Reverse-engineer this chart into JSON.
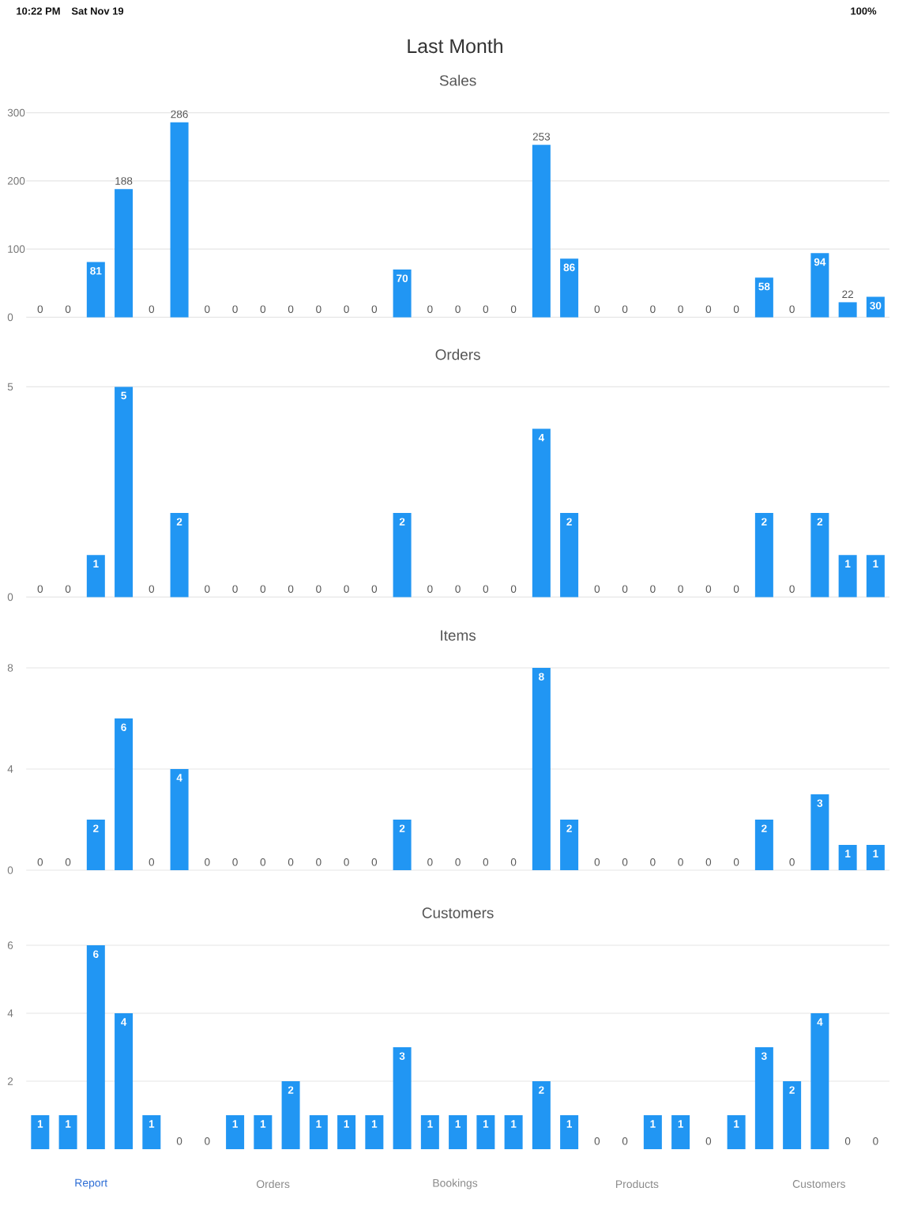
{
  "chart_data": [
    {
      "type": "other",
      "title": "Last Month",
      "annotations": [
        "10:22 PM",
        "Sat Nov 19",
        "100%"
      ]
    },
    {
      "type": "bar",
      "title": "Sales",
      "categories": [
        null,
        null,
        null,
        null,
        null,
        null,
        null,
        null,
        null,
        null,
        null,
        null,
        null,
        null,
        null,
        null,
        null,
        null,
        null,
        null,
        null,
        null,
        null,
        null,
        null,
        null,
        null,
        null,
        null,
        null,
        null
      ],
      "values": [
        0,
        0,
        81,
        188,
        0,
        286,
        0,
        0,
        0,
        0,
        0,
        0,
        0,
        70,
        0,
        0,
        0,
        0,
        253,
        86,
        0,
        0,
        0,
        0,
        0,
        0,
        58,
        0,
        94,
        22,
        30
      ],
      "color": "#2196f3",
      "ylim": [
        0,
        300
      ],
      "yticks": [
        0,
        100,
        200,
        300
      ],
      "grid": "y",
      "tick_labels": "y",
      "data_labels": true
    },
    {
      "type": "bar",
      "title": "Orders",
      "categories": [
        null,
        null,
        null,
        null,
        null,
        null,
        null,
        null,
        null,
        null,
        null,
        null,
        null,
        null,
        null,
        null,
        null,
        null,
        null,
        null,
        null,
        null,
        null,
        null,
        null,
        null,
        null,
        null,
        null,
        null,
        null
      ],
      "values": [
        0,
        0,
        1,
        5,
        0,
        2,
        0,
        0,
        0,
        0,
        0,
        0,
        0,
        2,
        0,
        0,
        0,
        0,
        4,
        2,
        0,
        0,
        0,
        0,
        0,
        0,
        2,
        0,
        2,
        1,
        1
      ],
      "color": "#2196f3",
      "ylim": [
        0,
        5
      ],
      "yticks": [
        0,
        5
      ],
      "grid": "y",
      "tick_labels": "y",
      "data_labels": true
    },
    {
      "type": "bar",
      "title": "Items",
      "categories": [
        null,
        null,
        null,
        null,
        null,
        null,
        null,
        null,
        null,
        null,
        null,
        null,
        null,
        null,
        null,
        null,
        null,
        null,
        null,
        null,
        null,
        null,
        null,
        null,
        null,
        null,
        null,
        null,
        null,
        null,
        null
      ],
      "values": [
        0,
        0,
        2,
        6,
        0,
        4,
        0,
        0,
        0,
        0,
        0,
        0,
        0,
        2,
        0,
        0,
        0,
        0,
        8,
        2,
        0,
        0,
        0,
        0,
        0,
        0,
        2,
        0,
        3,
        1,
        1
      ],
      "color": "#2196f3",
      "ylim": [
        0,
        8
      ],
      "yticks": [
        0,
        4,
        8
      ],
      "grid": "y",
      "tick_labels": "y",
      "data_labels": true
    },
    {
      "type": "bar",
      "title": "Customers",
      "categories": [
        null,
        null,
        null,
        null,
        null,
        null,
        null,
        null,
        null,
        null,
        null,
        null,
        null,
        null,
        null,
        null,
        null,
        null,
        null,
        null,
        null,
        null,
        null,
        null,
        null,
        null,
        null,
        null,
        null,
        null,
        null
      ],
      "values": [
        1,
        1,
        6,
        4,
        1,
        0,
        0,
        1,
        1,
        2,
        1,
        1,
        1,
        3,
        1,
        1,
        1,
        1,
        2,
        1,
        0,
        0,
        1,
        1,
        0,
        1,
        3,
        2,
        4,
        0,
        0
      ],
      "color": "#2196f3",
      "ylim": [
        0,
        6
      ],
      "yticks": [
        2,
        4,
        6
      ],
      "grid": "y",
      "tick_labels": "y",
      "data_labels": true
    },
    {
      "type": "other",
      "annotations": [
        "Report",
        "Orders",
        "Bookings",
        "Products",
        "Customers"
      ]
    }
  ]
}
